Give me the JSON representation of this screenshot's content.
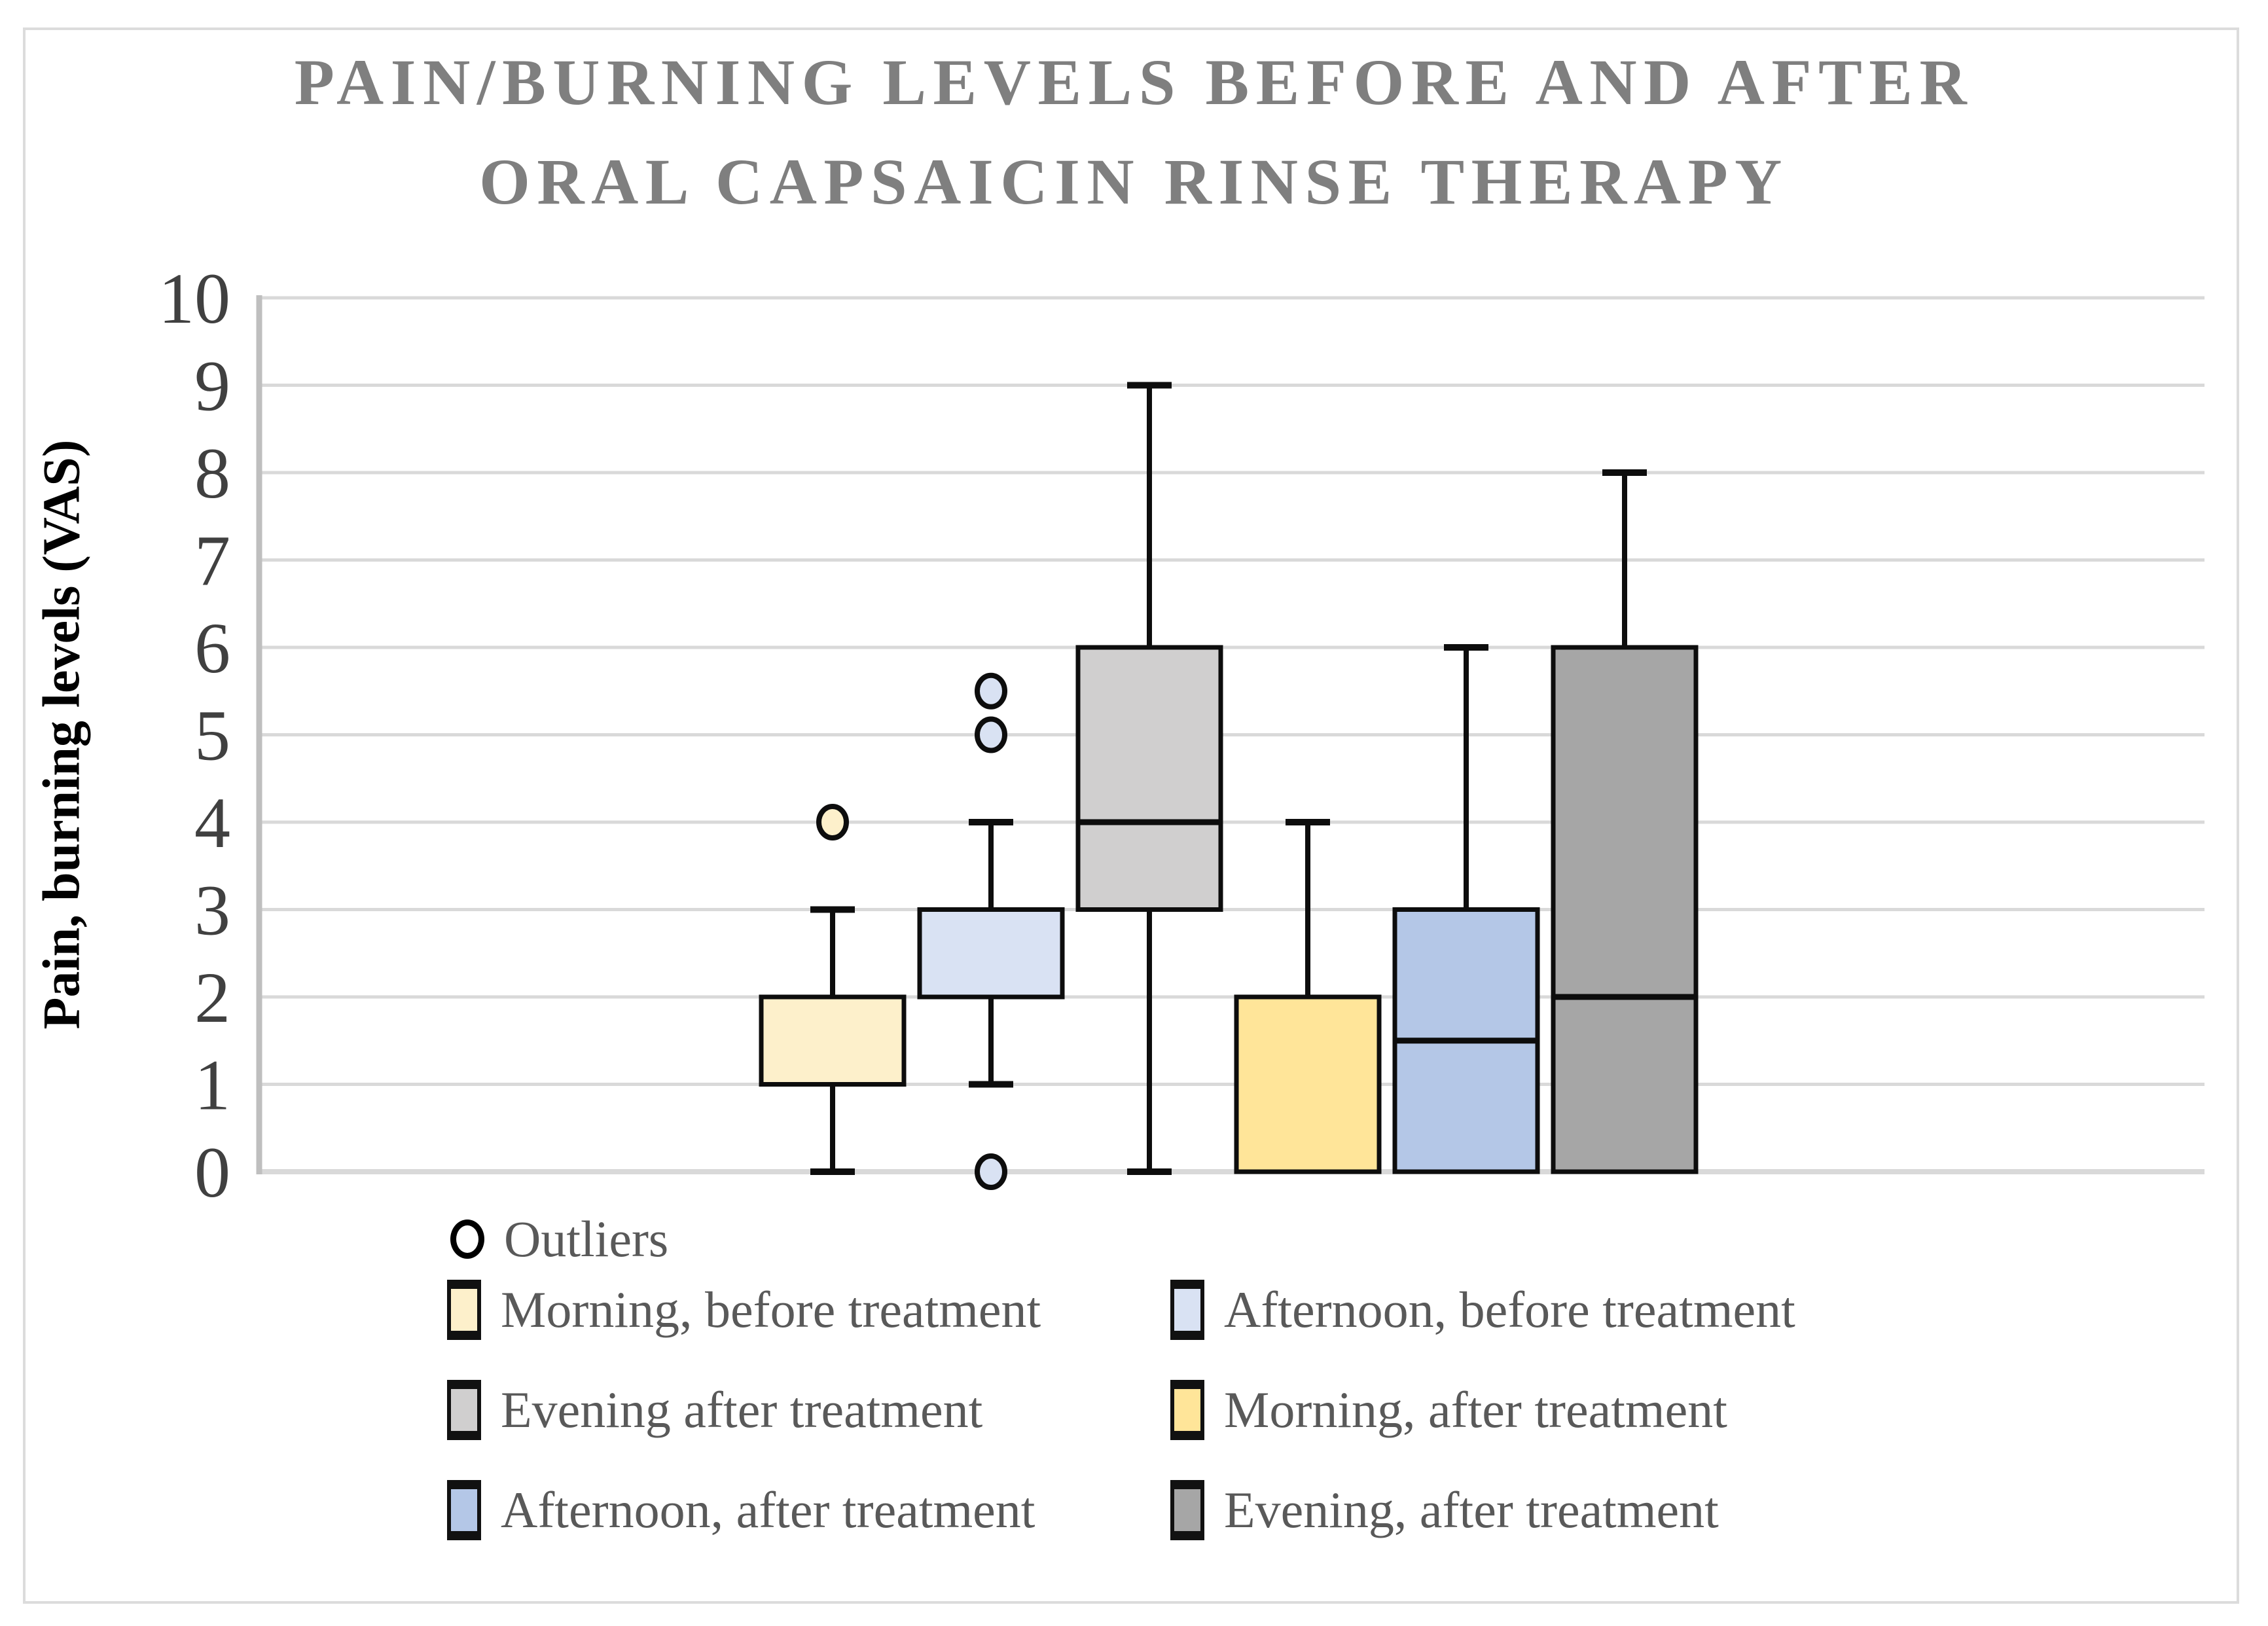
{
  "figure": {
    "title_line1": "PAIN/BURNING LEVELS BEFORE AND AFTER",
    "title_line2": "ORAL CAPSAICIN RINSE THERAPY",
    "title_color": "#7f7f7f",
    "border_color": "#dcdcdc",
    "background_color": "#ffffff",
    "gridline_color": "#d9d9d9",
    "axis_line_color": "#bfbfbf",
    "box_outline_color": "#0d0d0d",
    "tick_label_color": "#404040",
    "legend_text_color": "#595959"
  },
  "chart_data": {
    "type": "boxplot",
    "title": "PAIN/BURNING LEVELS BEFORE AND AFTER ORAL CAPSAICIN RINSE THERAPY",
    "xlabel": "",
    "ylabel": "Pain, burning levels (VAS)",
    "ylim": [
      0,
      10
    ],
    "yticks": [
      0,
      1,
      2,
      3,
      4,
      5,
      6,
      7,
      8,
      9,
      10
    ],
    "grid": true,
    "legend_position": "bottom",
    "series": [
      {
        "name": "Morning, before treatment",
        "color": "#FDF0CB",
        "q1": 1,
        "q3": 2,
        "median": null,
        "whisker_low": 0,
        "whisker_high": 3,
        "outliers": [
          4
        ]
      },
      {
        "name": "Afternoon, before treatment",
        "color": "#D9E2F3",
        "q1": 2,
        "q3": 3,
        "median": null,
        "whisker_low": 1,
        "whisker_high": 4,
        "outliers": [
          5.5,
          5,
          0
        ]
      },
      {
        "name": "Evening after treatment",
        "color": "#D0CFCF",
        "q1": 3,
        "q3": 6,
        "median": 4,
        "whisker_low": 0,
        "whisker_high": 9,
        "outliers": []
      },
      {
        "name": "Morning, after treatment",
        "color": "#FFE599",
        "q1": 0,
        "q3": 2,
        "median": null,
        "whisker_low": 0,
        "whisker_high": 4,
        "outliers": []
      },
      {
        "name": "Afternoon, after treatment",
        "color": "#B4C7E7",
        "q1": 0,
        "q3": 3,
        "median": 1.5,
        "whisker_low": 0,
        "whisker_high": 6,
        "outliers": []
      },
      {
        "name": "Evening, after treatment",
        "color": "#A6A6A6",
        "q1": 0,
        "q3": 6,
        "median": 2,
        "whisker_low": 0,
        "whisker_high": 8,
        "outliers": []
      }
    ],
    "legend": {
      "outlier_label": "Outliers",
      "items": [
        {
          "label": "Morning, before treatment",
          "color": "#FDF0CB"
        },
        {
          "label": "Afternoon, before treatment",
          "color": "#D9E2F3"
        },
        {
          "label": "Evening after treatment",
          "color": "#D0CFCF"
        },
        {
          "label": "Morning, after treatment",
          "color": "#FFE599"
        },
        {
          "label": "Afternoon, after treatment",
          "color": "#B4C7E7"
        },
        {
          "label": "Evening, after treatment",
          "color": "#A6A6A6"
        }
      ]
    }
  }
}
